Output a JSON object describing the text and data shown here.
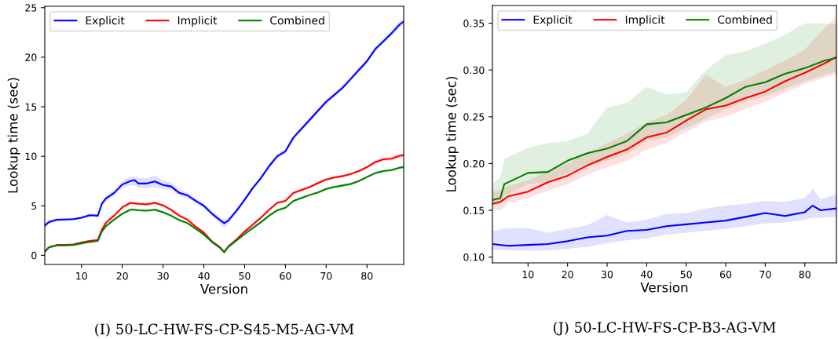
{
  "chart_data": [
    {
      "type": "line",
      "xlabel": "Version",
      "ylabel": "Lookup time (sec)",
      "annotations": [
        "(I) 50-LC-HW-FS-CP-S45-M5-AG-VM"
      ],
      "xlim": [
        1,
        89
      ],
      "ylim": [
        -0.92,
        25.14
      ],
      "xticks": [
        10,
        20,
        30,
        40,
        50,
        60,
        70,
        80
      ],
      "yticks": [
        0,
        5,
        10,
        15,
        20,
        25
      ],
      "legend": "top left",
      "grid": false,
      "x": [
        1,
        2,
        4,
        6,
        8,
        10,
        12,
        14,
        15,
        16,
        18,
        20,
        22,
        23,
        24,
        26,
        28,
        30,
        32,
        34,
        36,
        38,
        40,
        42,
        44,
        45,
        46,
        48,
        50,
        52,
        54,
        56,
        58,
        60,
        62,
        64,
        66,
        68,
        70,
        72,
        74,
        76,
        78,
        80,
        82,
        84,
        86,
        88,
        89
      ],
      "series": [
        {
          "name": "Explicit",
          "color": "#0000ff",
          "values": [
            3.0,
            3.35,
            3.6,
            3.62,
            3.65,
            3.8,
            4.05,
            4.0,
            5.2,
            5.75,
            6.3,
            7.15,
            7.5,
            7.6,
            7.25,
            7.25,
            7.45,
            7.1,
            6.95,
            6.3,
            6.05,
            5.5,
            5.0,
            4.2,
            3.55,
            3.25,
            3.5,
            4.5,
            5.6,
            6.8,
            7.8,
            9.0,
            10.0,
            10.5,
            11.9,
            12.8,
            13.7,
            14.6,
            15.5,
            16.2,
            16.9,
            17.8,
            18.7,
            19.6,
            20.8,
            21.6,
            22.4,
            23.3,
            23.6
          ],
          "lower": [
            2.8,
            3.15,
            3.4,
            3.45,
            3.5,
            3.65,
            3.9,
            3.85,
            4.95,
            5.5,
            6.0,
            6.8,
            7.05,
            7.1,
            6.8,
            6.8,
            6.9,
            6.7,
            6.6,
            6.0,
            5.75,
            5.25,
            4.75,
            3.95,
            3.2,
            2.8,
            3.2,
            4.25,
            5.35,
            6.55,
            7.55,
            8.75,
            9.75,
            10.25,
            11.65,
            12.55,
            13.45,
            14.35,
            15.25,
            15.95,
            16.65,
            17.55,
            18.45,
            19.35,
            20.55,
            21.35,
            22.1,
            23.0,
            23.3
          ],
          "upper": [
            3.2,
            3.55,
            3.8,
            3.8,
            3.8,
            3.95,
            4.2,
            4.15,
            5.45,
            6.0,
            6.6,
            7.5,
            7.95,
            8.0,
            7.8,
            7.8,
            8.1,
            7.55,
            7.35,
            6.65,
            6.35,
            5.8,
            5.25,
            4.45,
            3.85,
            3.6,
            3.8,
            4.75,
            5.85,
            7.05,
            8.05,
            9.25,
            10.25,
            10.75,
            12.15,
            13.05,
            13.95,
            14.85,
            15.75,
            16.45,
            17.15,
            18.05,
            18.95,
            19.85,
            21.05,
            21.85,
            22.7,
            23.6,
            23.9
          ]
        },
        {
          "name": "Implicit",
          "color": "#ff0000",
          "values": [
            0.4,
            0.8,
            1.05,
            1.05,
            1.1,
            1.3,
            1.45,
            1.55,
            2.6,
            3.3,
            4.0,
            4.85,
            5.3,
            5.25,
            5.2,
            5.15,
            5.3,
            5.05,
            4.6,
            4.0,
            3.6,
            2.9,
            2.3,
            1.4,
            0.8,
            0.3,
            0.9,
            1.6,
            2.4,
            3.1,
            3.8,
            4.6,
            5.3,
            5.5,
            6.3,
            6.6,
            6.9,
            7.3,
            7.65,
            7.85,
            8.0,
            8.2,
            8.5,
            8.9,
            9.4,
            9.7,
            9.75,
            10.05,
            10.1
          ],
          "lower": [
            0.3,
            0.7,
            0.95,
            0.95,
            1.0,
            1.2,
            1.35,
            1.45,
            2.45,
            3.15,
            3.85,
            4.7,
            5.15,
            5.1,
            5.05,
            5.0,
            5.15,
            4.9,
            4.45,
            3.85,
            3.45,
            2.75,
            2.15,
            1.25,
            0.65,
            0.2,
            0.75,
            1.45,
            2.25,
            2.95,
            3.65,
            4.45,
            5.15,
            5.35,
            6.15,
            6.45,
            6.75,
            7.15,
            7.5,
            7.7,
            7.85,
            8.05,
            8.35,
            8.75,
            9.2,
            9.5,
            9.55,
            9.8,
            9.85
          ],
          "upper": [
            0.5,
            0.9,
            1.15,
            1.15,
            1.2,
            1.4,
            1.55,
            1.65,
            2.75,
            3.45,
            4.15,
            5.0,
            5.45,
            5.4,
            5.35,
            5.3,
            5.45,
            5.2,
            4.75,
            4.15,
            3.75,
            3.05,
            2.45,
            1.55,
            0.95,
            0.4,
            1.05,
            1.75,
            2.55,
            3.25,
            3.95,
            4.75,
            5.45,
            5.65,
            6.45,
            6.75,
            7.05,
            7.45,
            7.8,
            8.0,
            8.15,
            8.35,
            8.65,
            9.05,
            9.6,
            9.9,
            9.95,
            10.3,
            10.35
          ]
        },
        {
          "name": "Combined",
          "color": "#008000",
          "values": [
            0.35,
            0.8,
            1.0,
            1.0,
            1.05,
            1.2,
            1.35,
            1.45,
            2.4,
            2.95,
            3.6,
            4.2,
            4.6,
            4.6,
            4.55,
            4.5,
            4.6,
            4.35,
            4.0,
            3.55,
            3.25,
            2.7,
            2.1,
            1.35,
            0.75,
            0.35,
            0.85,
            1.5,
            2.15,
            2.75,
            3.35,
            4.0,
            4.55,
            4.8,
            5.5,
            5.8,
            6.1,
            6.35,
            6.7,
            6.9,
            7.05,
            7.2,
            7.5,
            7.9,
            8.3,
            8.5,
            8.6,
            8.85,
            8.9
          ],
          "lower": [
            0.25,
            0.7,
            0.9,
            0.9,
            0.95,
            1.1,
            1.25,
            1.35,
            2.25,
            2.8,
            3.45,
            4.05,
            4.45,
            4.45,
            4.4,
            4.35,
            4.45,
            4.2,
            3.85,
            3.4,
            3.1,
            2.55,
            1.95,
            1.2,
            0.6,
            0.25,
            0.7,
            1.35,
            2.0,
            2.6,
            3.2,
            3.85,
            4.4,
            4.65,
            5.35,
            5.65,
            5.95,
            6.2,
            6.55,
            6.75,
            6.9,
            7.05,
            7.35,
            7.75,
            8.15,
            8.35,
            8.45,
            8.7,
            8.75
          ],
          "upper": [
            0.45,
            0.9,
            1.1,
            1.1,
            1.15,
            1.3,
            1.45,
            1.55,
            2.55,
            3.1,
            3.75,
            4.35,
            4.75,
            4.75,
            4.7,
            4.65,
            4.75,
            4.5,
            4.15,
            3.7,
            3.4,
            2.85,
            2.25,
            1.5,
            0.9,
            0.45,
            1.0,
            1.65,
            2.3,
            2.9,
            3.5,
            4.15,
            4.7,
            4.95,
            5.65,
            5.95,
            6.25,
            6.5,
            6.85,
            7.05,
            7.2,
            7.35,
            7.65,
            8.05,
            8.45,
            8.65,
            8.75,
            9.0,
            9.05
          ]
        }
      ]
    },
    {
      "type": "line",
      "xlabel": "Version",
      "ylabel": "Lookup time (sec)",
      "annotations": [
        "(J) 50-LC-HW-FS-CP-B3-AG-VM"
      ],
      "xlim": [
        1,
        88
      ],
      "ylim": [
        0.0938,
        0.369
      ],
      "xticks": [
        10,
        20,
        30,
        40,
        50,
        60,
        70,
        80
      ],
      "yticks": [
        {
          "value": 0.1,
          "label": "0.10"
        },
        {
          "value": 0.15,
          "label": "0.15"
        },
        {
          "value": 0.2,
          "label": "0.20"
        },
        {
          "value": 0.25,
          "label": "0.25"
        },
        {
          "value": 0.3,
          "label": "0.30"
        },
        {
          "value": 0.35,
          "label": "0.35"
        }
      ],
      "legend": "top left",
      "grid": false,
      "series": [
        {
          "name": "Explicit",
          "color": "#0000ff",
          "x": [
            1,
            5,
            10,
            15,
            20,
            25,
            30,
            35,
            40,
            45,
            50,
            55,
            60,
            65,
            70,
            75,
            80,
            82,
            84,
            88
          ],
          "values": [
            0.114,
            0.112,
            0.113,
            0.114,
            0.117,
            0.121,
            0.123,
            0.128,
            0.129,
            0.133,
            0.135,
            0.137,
            0.139,
            0.143,
            0.147,
            0.144,
            0.148,
            0.155,
            0.15,
            0.152
          ],
          "lower": [
            0.108,
            0.107,
            0.107,
            0.107,
            0.109,
            0.111,
            0.115,
            0.118,
            0.12,
            0.124,
            0.126,
            0.128,
            0.13,
            0.133,
            0.136,
            0.137,
            0.14,
            0.142,
            0.142,
            0.143
          ],
          "upper": [
            0.128,
            0.131,
            0.131,
            0.126,
            0.13,
            0.134,
            0.145,
            0.137,
            0.14,
            0.146,
            0.147,
            0.152,
            0.155,
            0.157,
            0.16,
            0.159,
            0.163,
            0.173,
            0.162,
            0.167
          ]
        },
        {
          "name": "Implicit",
          "color": "#ff0000",
          "x": [
            1,
            3,
            5,
            10,
            15,
            20,
            25,
            30,
            35,
            40,
            45,
            50,
            55,
            60,
            65,
            70,
            75,
            80,
            85,
            88
          ],
          "values": [
            0.157,
            0.159,
            0.165,
            0.17,
            0.18,
            0.187,
            0.198,
            0.207,
            0.215,
            0.228,
            0.233,
            0.246,
            0.258,
            0.262,
            0.27,
            0.277,
            0.288,
            0.297,
            0.307,
            0.314
          ],
          "lower": [
            0.15,
            0.15,
            0.158,
            0.163,
            0.171,
            0.178,
            0.188,
            0.196,
            0.203,
            0.215,
            0.222,
            0.234,
            0.245,
            0.25,
            0.258,
            0.266,
            0.276,
            0.285,
            0.292,
            0.296
          ],
          "upper": [
            0.17,
            0.172,
            0.176,
            0.182,
            0.192,
            0.2,
            0.212,
            0.222,
            0.232,
            0.244,
            0.252,
            0.268,
            0.295,
            0.282,
            0.29,
            0.3,
            0.31,
            0.322,
            0.345,
            0.357
          ]
        },
        {
          "name": "Combined",
          "color": "#008000",
          "x": [
            1,
            3,
            4,
            10,
            15,
            20,
            25,
            30,
            35,
            40,
            45,
            50,
            55,
            60,
            65,
            70,
            75,
            80,
            85,
            88
          ],
          "values": [
            0.161,
            0.163,
            0.178,
            0.19,
            0.191,
            0.203,
            0.211,
            0.216,
            0.224,
            0.242,
            0.244,
            0.252,
            0.26,
            0.27,
            0.282,
            0.287,
            0.296,
            0.302,
            0.31,
            0.313
          ],
          "lower": [
            0.155,
            0.157,
            0.165,
            0.178,
            0.18,
            0.19,
            0.197,
            0.203,
            0.21,
            0.224,
            0.228,
            0.238,
            0.248,
            0.258,
            0.266,
            0.272,
            0.28,
            0.288,
            0.295,
            0.298
          ],
          "upper": [
            0.178,
            0.186,
            0.205,
            0.217,
            0.222,
            0.224,
            0.232,
            0.26,
            0.265,
            0.282,
            0.274,
            0.276,
            0.3,
            0.316,
            0.32,
            0.328,
            0.338,
            0.35,
            0.35,
            0.349
          ]
        }
      ]
    }
  ]
}
